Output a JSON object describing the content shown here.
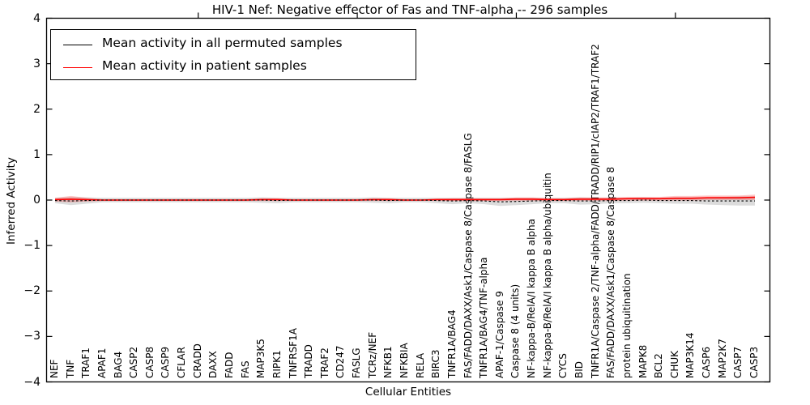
{
  "title": "HIV-1 Nef: Negative effector of Fas and TNF-alpha -- 296 samples",
  "legend": {
    "items": [
      {
        "label": "Mean activity in all permuted samples",
        "color": "#000000"
      },
      {
        "label": "Mean activity in patient samples",
        "color": "#ff0000"
      }
    ]
  },
  "chart_data": {
    "type": "line",
    "title": "HIV-1 Nef: Negative effector of Fas and TNF-alpha -- 296 samples",
    "xlabel": "Cellular Entities",
    "ylabel": "Inferred Activity",
    "ylim": [
      -4,
      4
    ],
    "yticks": [
      4,
      3,
      2,
      1,
      0,
      -1,
      -2,
      -3,
      -4
    ],
    "xticks_top": [
      10,
      20,
      30,
      40
    ],
    "grid": false,
    "legend_position": "upper left",
    "categories": [
      "NEF",
      "TNF",
      "TRAF1",
      "APAF1",
      "BAG4",
      "CASP2",
      "CASP8",
      "CASP9",
      "CFLAR",
      "CRADD",
      "DAXX",
      "FADD",
      "FAS",
      "MAP3K5",
      "RIPK1",
      "TNFRSF1A",
      "TRADD",
      "TRAF2",
      "CD247",
      "FASLG",
      "TCRz/NEF",
      "NFKB1",
      "NFKBIA",
      "RELA",
      "BIRC3",
      "TNFR1A/BAG4",
      "FAS/FADD/DAXX/Ask1/Caspase 8/Caspase 8/FASLG",
      "TNFR1A/BAG4/TNF-alpha",
      "APAF-1/Caspase 9",
      "Caspase 8 (4 units)",
      "NF-kappa-B/RelA/I kappa B alpha",
      "NF-kappa-B/RelA/I kappa B alpha/ubiquitin",
      "CYCS",
      "BID",
      "TNFR1A/Caspase 2/TNF-alpha/FADD/TRADD/RIP1/cIAP2/TRAF1/TRAF2",
      "FAS/FADD/DAXX/Ask1/Caspase 8/Caspase 8",
      "protein ubiquitination",
      "MAPK8",
      "BCL2",
      "CHUK",
      "MAP3K14",
      "CASP6",
      "MAP2K7",
      "CASP7",
      "CASP3"
    ],
    "series": [
      {
        "name": "Mean activity in all permuted samples",
        "color": "#000000",
        "line_style": "dashed-overlay",
        "band_color": "rgba(130,130,130,0.28)",
        "values": [
          -0.01,
          -0.02,
          -0.01,
          0,
          0,
          0,
          0,
          0,
          0,
          0,
          0,
          0,
          0,
          0,
          -0.01,
          0,
          0,
          0,
          0,
          0,
          0,
          -0.01,
          0,
          0,
          -0.01,
          -0.02,
          -0.01,
          -0.02,
          -0.04,
          -0.03,
          -0.02,
          -0.01,
          -0.01,
          -0.02,
          -0.02,
          -0.01,
          -0.01,
          0,
          -0.01,
          -0.01,
          -0.01,
          -0.02,
          -0.02,
          -0.02,
          -0.02
        ],
        "band_halfwidth": [
          0.06,
          0.09,
          0.07,
          0.05,
          0.05,
          0.05,
          0.05,
          0.05,
          0.05,
          0.05,
          0.05,
          0.05,
          0.05,
          0.06,
          0.06,
          0.05,
          0.05,
          0.05,
          0.05,
          0.05,
          0.06,
          0.06,
          0.05,
          0.05,
          0.06,
          0.07,
          0.06,
          0.07,
          0.09,
          0.08,
          0.07,
          0.06,
          0.06,
          0.08,
          0.07,
          0.06,
          0.06,
          0.06,
          0.06,
          0.07,
          0.07,
          0.08,
          0.09,
          0.1,
          0.1
        ]
      },
      {
        "name": "Mean activity in patient samples",
        "color": "#ff0000",
        "line_style": "solid",
        "band_color": "rgba(255,0,0,0.22)",
        "values": [
          0.01,
          0.02,
          0.01,
          0,
          0,
          0,
          0,
          0,
          0,
          0,
          0,
          0,
          0,
          0.01,
          0.01,
          0,
          0,
          0,
          0,
          0,
          0.01,
          0.01,
          0,
          0,
          0.01,
          0.01,
          0.01,
          0.01,
          0.01,
          0.02,
          0.02,
          0.01,
          0.01,
          0.02,
          0.02,
          0.02,
          0.03,
          0.03,
          0.03,
          0.04,
          0.04,
          0.05,
          0.05,
          0.05,
          0.06
        ],
        "band_halfwidth": [
          0.04,
          0.07,
          0.04,
          0.02,
          0.02,
          0.02,
          0.02,
          0.02,
          0.02,
          0.02,
          0.02,
          0.02,
          0.02,
          0.03,
          0.03,
          0.02,
          0.02,
          0.02,
          0.02,
          0.02,
          0.03,
          0.03,
          0.02,
          0.02,
          0.02,
          0.03,
          0.03,
          0.03,
          0.03,
          0.04,
          0.04,
          0.03,
          0.03,
          0.04,
          0.04,
          0.04,
          0.04,
          0.04,
          0.04,
          0.05,
          0.05,
          0.05,
          0.05,
          0.05,
          0.06
        ]
      }
    ]
  },
  "colors": {
    "axis": "#000000",
    "background": "#ffffff"
  }
}
